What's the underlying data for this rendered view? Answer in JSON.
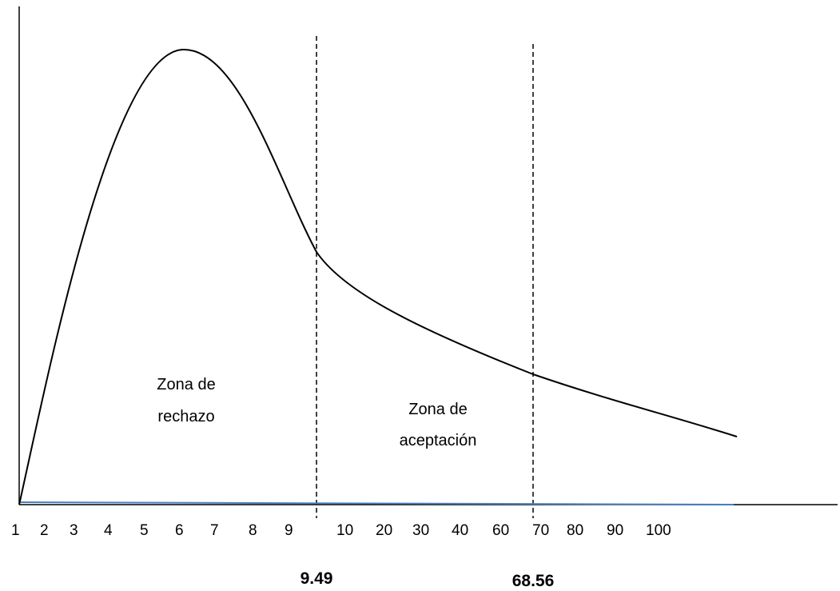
{
  "chart_data": {
    "type": "line",
    "title": "",
    "xlabel": "",
    "ylabel": "",
    "x_ticks": [
      "1",
      "2",
      "3",
      "4",
      "5",
      "6",
      "7",
      "8",
      "9",
      "10",
      "20",
      "30",
      "40",
      "60",
      "70",
      "80",
      "90",
      "100"
    ],
    "y_ticks": [],
    "grid": false,
    "legend": "none",
    "series": [
      {
        "kind": "density-curve",
        "color": "#000000",
        "x": [
          1,
          2,
          3,
          4,
          5,
          6,
          7,
          8,
          9,
          9.49,
          10,
          20,
          30,
          40,
          60,
          68.56,
          70,
          80,
          90,
          100
        ],
        "y": [
          0.0,
          0.42,
          0.68,
          0.85,
          0.95,
          0.98,
          0.91,
          0.74,
          0.55,
          0.48,
          0.43,
          0.38,
          0.34,
          0.3,
          0.27,
          0.23,
          0.22,
          0.19,
          0.17,
          0.14
        ]
      },
      {
        "kind": "baseline",
        "color": "#4a7ebb",
        "x": [
          1,
          100
        ],
        "y": [
          0.0,
          0.0
        ]
      }
    ],
    "critical_values": [
      {
        "x": 9.49,
        "label": "9.49",
        "style": "dashed"
      },
      {
        "x": 68.56,
        "label": "68.56",
        "style": "dashed"
      }
    ],
    "annotations": [
      {
        "x": 6.5,
        "lines": [
          "Zona de",
          "rechazo"
        ]
      },
      {
        "x": 20,
        "lines": [
          "Zona de",
          "aceptación"
        ]
      }
    ]
  }
}
